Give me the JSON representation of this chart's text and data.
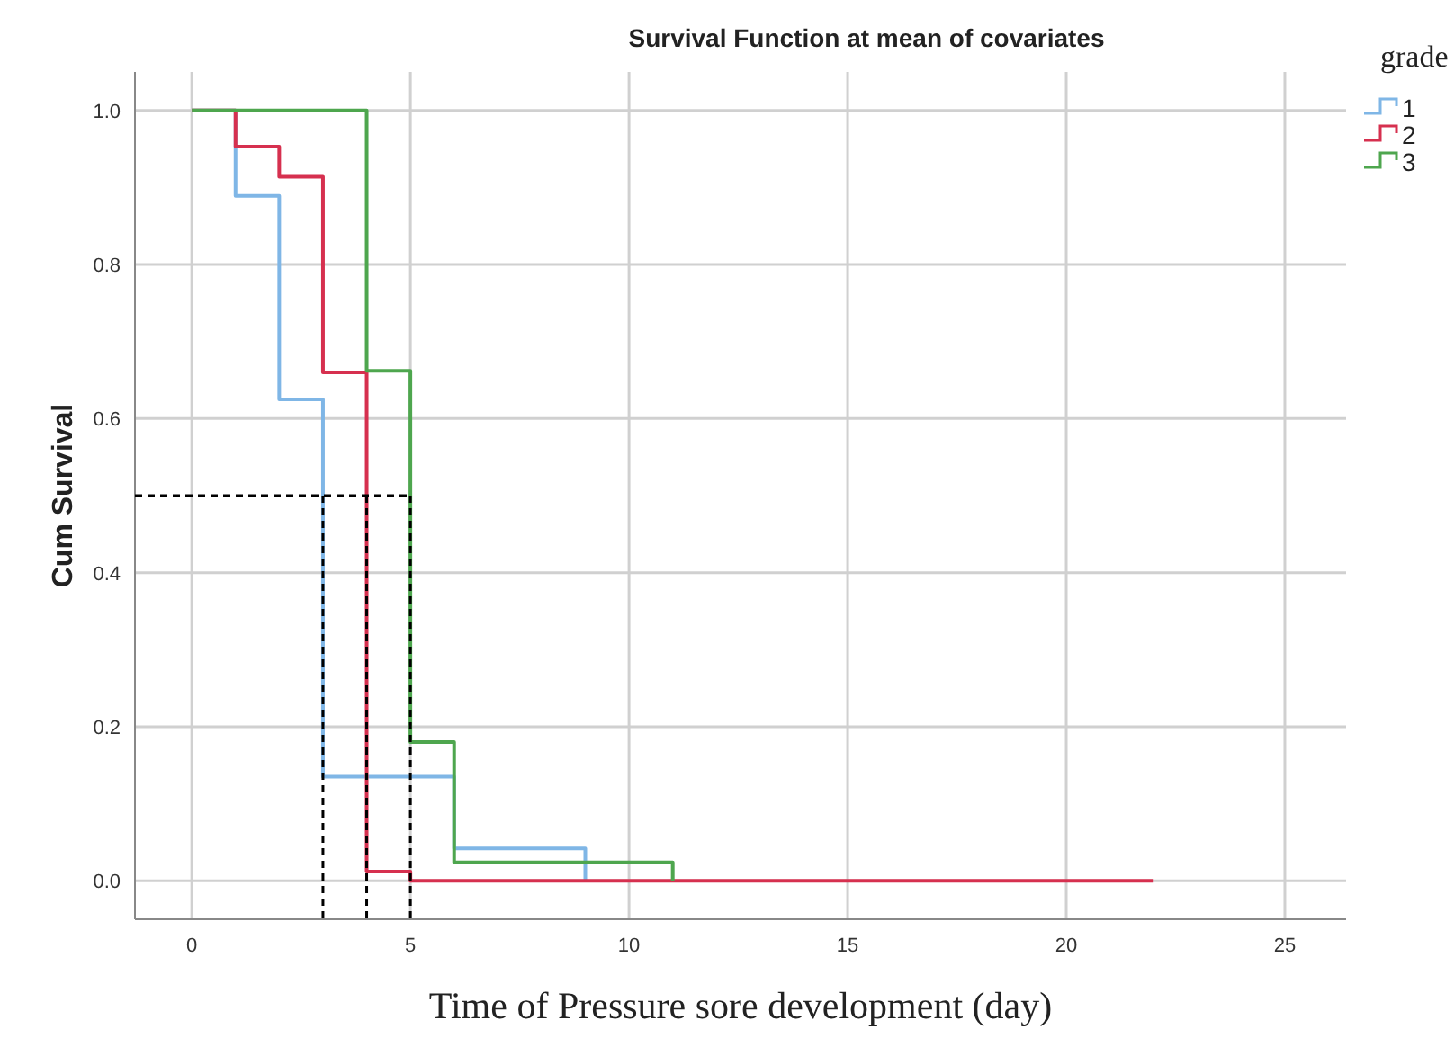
{
  "chart_data": {
    "type": "step",
    "title": "Survival Function at mean of covariates",
    "xlabel": "Time of Pressure sore development (day)",
    "ylabel": "Cum Survival",
    "legend_title": "grade",
    "legend": "top right",
    "grid": true,
    "xlim": [
      -1.3,
      26.4
    ],
    "ylim": [
      -0.05,
      1.05
    ],
    "xticks": [
      0,
      5,
      10,
      15,
      20,
      25
    ],
    "yticks": [
      {
        "value": 0,
        "label": "0.0"
      },
      {
        "value": 0.2,
        "label": "0.2"
      },
      {
        "value": 0.4,
        "label": "0.4"
      },
      {
        "value": 0.6,
        "label": "0.6"
      },
      {
        "value": 0.8,
        "label": "0.8"
      },
      {
        "value": 1,
        "label": "1.0"
      }
    ],
    "series": [
      {
        "name": "1",
        "color": "#7fb6e6",
        "x": [
          0,
          1,
          2,
          3,
          6,
          9
        ],
        "values": [
          1,
          0.889,
          0.625,
          0.135,
          0.042,
          0
        ]
      },
      {
        "name": "2",
        "color": "#d6304f",
        "x": [
          0,
          1,
          2,
          3,
          4,
          5,
          22
        ],
        "values": [
          1,
          0.953,
          0.914,
          0.66,
          0.012,
          0,
          0
        ]
      },
      {
        "name": "3",
        "color": "#4ea64e",
        "x": [
          0,
          4,
          5,
          6,
          11
        ],
        "values": [
          1,
          0.662,
          0.18,
          0.024,
          0
        ]
      },
      {
        "type": "line",
        "color": "#000000",
        "line_style": "dashed",
        "x": [
          -1.3,
          5
        ],
        "values": [
          0.5,
          0.5
        ]
      },
      {
        "type": "line",
        "color": "#000000",
        "line_style": "dashed",
        "x": [
          3,
          3
        ],
        "values": [
          0.5,
          -0.05
        ]
      },
      {
        "type": "line",
        "color": "#000000",
        "line_style": "dashed",
        "x": [
          4,
          4
        ],
        "values": [
          0.5,
          -0.05
        ]
      },
      {
        "type": "line",
        "color": "#000000",
        "line_style": "dashed",
        "x": [
          5,
          5
        ],
        "values": [
          0.5,
          -0.05
        ]
      }
    ]
  }
}
